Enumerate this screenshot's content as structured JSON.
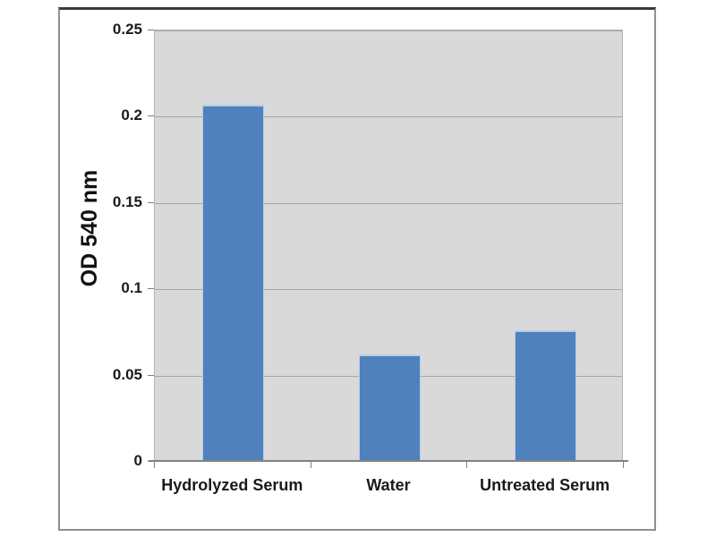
{
  "chart_data": {
    "type": "bar",
    "categories": [
      "Hydrolyzed Serum",
      "Water",
      "Untreated Serum"
    ],
    "values": [
      0.207,
      0.062,
      0.076
    ],
    "title": "",
    "xlabel": "",
    "ylabel": "OD 540 nm",
    "ylim": [
      0,
      0.25
    ],
    "yticks": [
      0,
      0.05,
      0.1,
      0.15,
      0.2,
      0.25
    ],
    "ytick_labels": [
      "0",
      "0.05",
      "0.1",
      "0.15",
      "0.2",
      "0.25"
    ],
    "grid": true,
    "legend": false,
    "colors": {
      "bar_fill": "#4f81bd",
      "bar_edge": "#b7cde7",
      "plot_bg": "#d9d9d9",
      "gridline": "#a6a6a6",
      "axis": "#808080",
      "text": "#1a1a1a",
      "frame_border": "#8f8f8f",
      "background": "#ffffff"
    }
  }
}
